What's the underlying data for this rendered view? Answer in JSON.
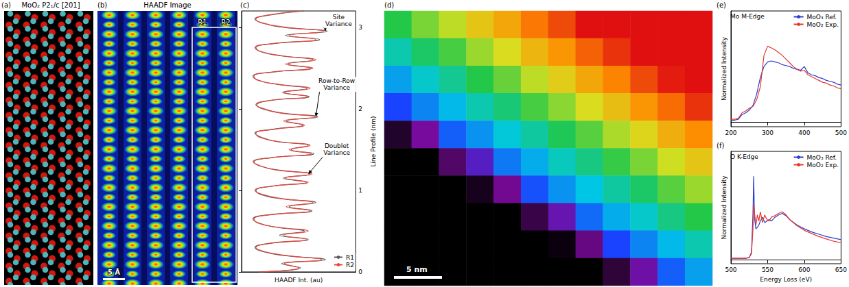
{
  "figure": {
    "panels": [
      {
        "letter": "(a)",
        "title": "MoO₂ P2₁/c [201]"
      },
      {
        "letter": "(b)",
        "title": "HAADF Image",
        "scale_bar": "5 Å",
        "row_labels": [
          "R1",
          "R2"
        ]
      }
    ]
  },
  "chart_data": [
    {
      "letter": "(c)",
      "type": "line",
      "x_label": "HAADF Int. (au)",
      "y_label": "Line Profile (nm)",
      "xlim": [
        0,
        1.2
      ],
      "ylim": [
        0,
        3.2
      ],
      "yticks": [
        0,
        1,
        2,
        3
      ],
      "tick_labels": "y",
      "legend": "lower right",
      "y": [
        0,
        0.05,
        0.1,
        0.15,
        0.2,
        0.25,
        0.3,
        0.35,
        0.4,
        0.45,
        0.5,
        0.55,
        0.6,
        0.65,
        0.7,
        0.75,
        0.8,
        0.85,
        0.9,
        0.95,
        1,
        1.05,
        1.1,
        1.15,
        1.2,
        1.25,
        1.3,
        1.35,
        1.4,
        1.45,
        1.5,
        1.55,
        1.6,
        1.65,
        1.7,
        1.75,
        1.8,
        1.85,
        1.9,
        1.95,
        2,
        2.05,
        2.1,
        2.15,
        2.2,
        2.25,
        2.3,
        2.35,
        2.4,
        2.45,
        2.5,
        2.55,
        2.6,
        2.65,
        2.7,
        2.75,
        2.8,
        2.85,
        2.9,
        2.95,
        3,
        3.05,
        3.1,
        3.15,
        3.2
      ],
      "series": [
        {
          "name": "R1",
          "color": "#5a5a5a",
          "values": [
            0.2,
            0.62,
            0.42,
            0.88,
            0.45,
            0.22,
            0.14,
            0.3,
            0.7,
            0.4,
            0.66,
            0.35,
            0.18,
            0.12,
            0.28,
            0.74,
            0.5,
            0.78,
            0.4,
            0.2,
            0.15,
            0.32,
            0.68,
            0.44,
            0.72,
            0.38,
            0.19,
            0.13,
            0.3,
            0.76,
            0.52,
            0.7,
            0.36,
            0.21,
            0.14,
            0.33,
            0.64,
            0.47,
            0.8,
            0.42,
            0.22,
            0.16,
            0.29,
            0.71,
            0.43,
            0.69,
            0.37,
            0.18,
            0.12,
            0.31,
            0.73,
            0.49,
            0.75,
            0.41,
            0.2,
            0.15,
            0.34,
            0.82,
            0.46,
            0.9,
            0.44,
            0.23,
            0.14,
            0.3,
            0.66
          ]
        },
        {
          "name": "R2",
          "color": "#e8463c",
          "values": [
            0.18,
            0.6,
            0.45,
            0.84,
            0.48,
            0.24,
            0.15,
            0.28,
            0.68,
            0.44,
            0.7,
            0.37,
            0.17,
            0.13,
            0.3,
            0.72,
            0.47,
            0.75,
            0.42,
            0.22,
            0.14,
            0.3,
            0.7,
            0.46,
            0.74,
            0.36,
            0.2,
            0.12,
            0.31,
            0.73,
            0.5,
            0.72,
            0.38,
            0.19,
            0.15,
            0.35,
            0.66,
            0.44,
            0.77,
            0.4,
            0.24,
            0.15,
            0.27,
            0.69,
            0.45,
            0.72,
            0.39,
            0.17,
            0.13,
            0.33,
            0.75,
            0.46,
            0.78,
            0.43,
            0.21,
            0.14,
            0.32,
            0.78,
            0.5,
            0.86,
            0.47,
            0.22,
            0.15,
            0.28,
            0.63
          ]
        }
      ],
      "annotations": [
        {
          "text": "Site Variance",
          "x": 0.88,
          "y": 2.95,
          "text_x": 1.02,
          "text_y": 3.08
        },
        {
          "text": "Row-to-Row Variance",
          "x": 0.78,
          "y": 1.9,
          "text_x": 1.0,
          "text_y": 2.3
        },
        {
          "text": "Doublet Variance",
          "x": 0.7,
          "y": 1.2,
          "text_x": 1.0,
          "text_y": 1.5
        }
      ]
    },
    {
      "letter": "(d)",
      "type": "heatmap",
      "tick_labels": false,
      "scale_bar": "5 nm",
      "color_range": [
        0,
        7.5
      ],
      "colors": [
        "#000000",
        "#7a0a9a",
        "#1a3cff",
        "#00c8e6",
        "#22c84a",
        "#d8e020",
        "#ff8c00",
        "#e01010"
      ],
      "cells": [
        [
          4.3,
          4.8,
          5.2,
          5.7,
          6.1,
          6.6,
          7.0,
          7.5,
          7.5,
          7.5,
          7.5,
          7.5
        ],
        [
          3.6,
          4.1,
          4.5,
          5.0,
          5.4,
          5.9,
          6.3,
          6.8,
          7.2,
          7.5,
          7.5,
          7.5
        ],
        [
          2.9,
          3.4,
          3.8,
          4.3,
          4.7,
          5.2,
          5.6,
          6.1,
          6.5,
          7.0,
          7.4,
          7.5
        ],
        [
          2.2,
          2.7,
          3.1,
          3.6,
          4.0,
          4.5,
          4.9,
          5.4,
          5.8,
          6.3,
          6.7,
          7.2
        ],
        [
          0.3,
          1.1,
          2.4,
          2.8,
          3.3,
          3.7,
          4.2,
          4.6,
          5.1,
          5.5,
          6.0,
          6.4
        ],
        [
          0,
          0,
          0.7,
          1.5,
          2.6,
          3.0,
          3.5,
          3.9,
          4.4,
          4.8,
          5.3,
          5.7
        ],
        [
          0,
          0,
          0,
          0.2,
          1.0,
          2.3,
          2.8,
          3.2,
          3.7,
          4.1,
          4.6,
          5.0
        ],
        [
          0,
          0,
          0,
          0,
          0,
          0.5,
          1.3,
          2.5,
          3.0,
          3.4,
          3.9,
          4.3
        ],
        [
          0,
          0,
          0,
          0,
          0,
          0,
          0.1,
          0.9,
          2.2,
          2.7,
          3.1,
          3.6
        ],
        [
          0,
          0,
          0,
          0,
          0,
          0,
          0,
          0,
          0.4,
          1.2,
          2.4,
          2.9
        ]
      ]
    },
    {
      "letter": "(e)",
      "type": "line",
      "title": "Mo M-Edge",
      "y_label": "Normalized Intensity",
      "xlim": [
        200,
        500
      ],
      "xticks": [
        200,
        300,
        400,
        500
      ],
      "ylim": [
        -0.05,
        1.2
      ],
      "tick_labels": "x",
      "legend": "upper right",
      "baseline": 0,
      "x": [
        200,
        210,
        220,
        230,
        240,
        250,
        260,
        270,
        280,
        290,
        300,
        310,
        320,
        330,
        340,
        350,
        360,
        370,
        380,
        390,
        400,
        410,
        420,
        430,
        440,
        450,
        460,
        470,
        480,
        490,
        500
      ],
      "series": [
        {
          "name": "MoO₃ Ref.",
          "color": "#2a3ccf",
          "values": [
            0.02,
            0.02,
            0.03,
            0.08,
            0.1,
            0.13,
            0.18,
            0.3,
            0.48,
            0.6,
            0.65,
            0.66,
            0.65,
            0.64,
            0.62,
            0.61,
            0.6,
            0.58,
            0.57,
            0.56,
            0.6,
            0.53,
            0.51,
            0.5,
            0.48,
            0.47,
            0.45,
            0.44,
            0.43,
            0.41,
            0.4
          ]
        },
        {
          "name": "MoO₂ Exp.",
          "color": "#e8352a",
          "values": [
            0.03,
            0.03,
            0.04,
            0.1,
            0.12,
            0.15,
            0.17,
            0.24,
            0.38,
            0.72,
            0.82,
            0.8,
            0.78,
            0.75,
            0.72,
            0.68,
            0.64,
            0.6,
            0.57,
            0.55,
            0.56,
            0.51,
            0.49,
            0.47,
            0.45,
            0.43,
            0.42,
            0.4,
            0.39,
            0.37,
            0.36
          ]
        }
      ]
    },
    {
      "letter": "(f)",
      "type": "line",
      "title": "O K-Edge",
      "y_label": "Normalized Intensity",
      "x_label": "Energy Loss (eV)",
      "xlim": [
        500,
        650
      ],
      "xticks": [
        500,
        550,
        600,
        650
      ],
      "ylim": [
        -0.05,
        1.4
      ],
      "tick_labels": "x",
      "legend": "upper right",
      "baseline": 0,
      "x": [
        500,
        505,
        510,
        515,
        520,
        525,
        528,
        530,
        531,
        532,
        534,
        536,
        538,
        540,
        543,
        546,
        549,
        552,
        555,
        560,
        565,
        570,
        575,
        580,
        590,
        600,
        610,
        620,
        630,
        640,
        650
      ],
      "series": [
        {
          "name": "MoO₃ Ref.",
          "color": "#2a3ccf",
          "values": [
            0.02,
            0.02,
            0.02,
            0.02,
            0.02,
            0.03,
            0.1,
            0.6,
            1.08,
            0.55,
            0.4,
            0.42,
            0.45,
            0.5,
            0.55,
            0.48,
            0.5,
            0.52,
            0.5,
            0.55,
            0.58,
            0.6,
            0.57,
            0.52,
            0.45,
            0.4,
            0.36,
            0.33,
            0.3,
            0.28,
            0.26
          ]
        },
        {
          "name": "MoO₂ Exp.",
          "color": "#e8352a",
          "values": [
            0.02,
            0.02,
            0.02,
            0.02,
            0.02,
            0.03,
            0.08,
            0.4,
            0.72,
            0.62,
            0.45,
            0.58,
            0.5,
            0.62,
            0.48,
            0.58,
            0.52,
            0.5,
            0.55,
            0.57,
            0.6,
            0.62,
            0.58,
            0.52,
            0.44,
            0.38,
            0.34,
            0.3,
            0.27,
            0.24,
            0.22
          ]
        }
      ]
    }
  ]
}
